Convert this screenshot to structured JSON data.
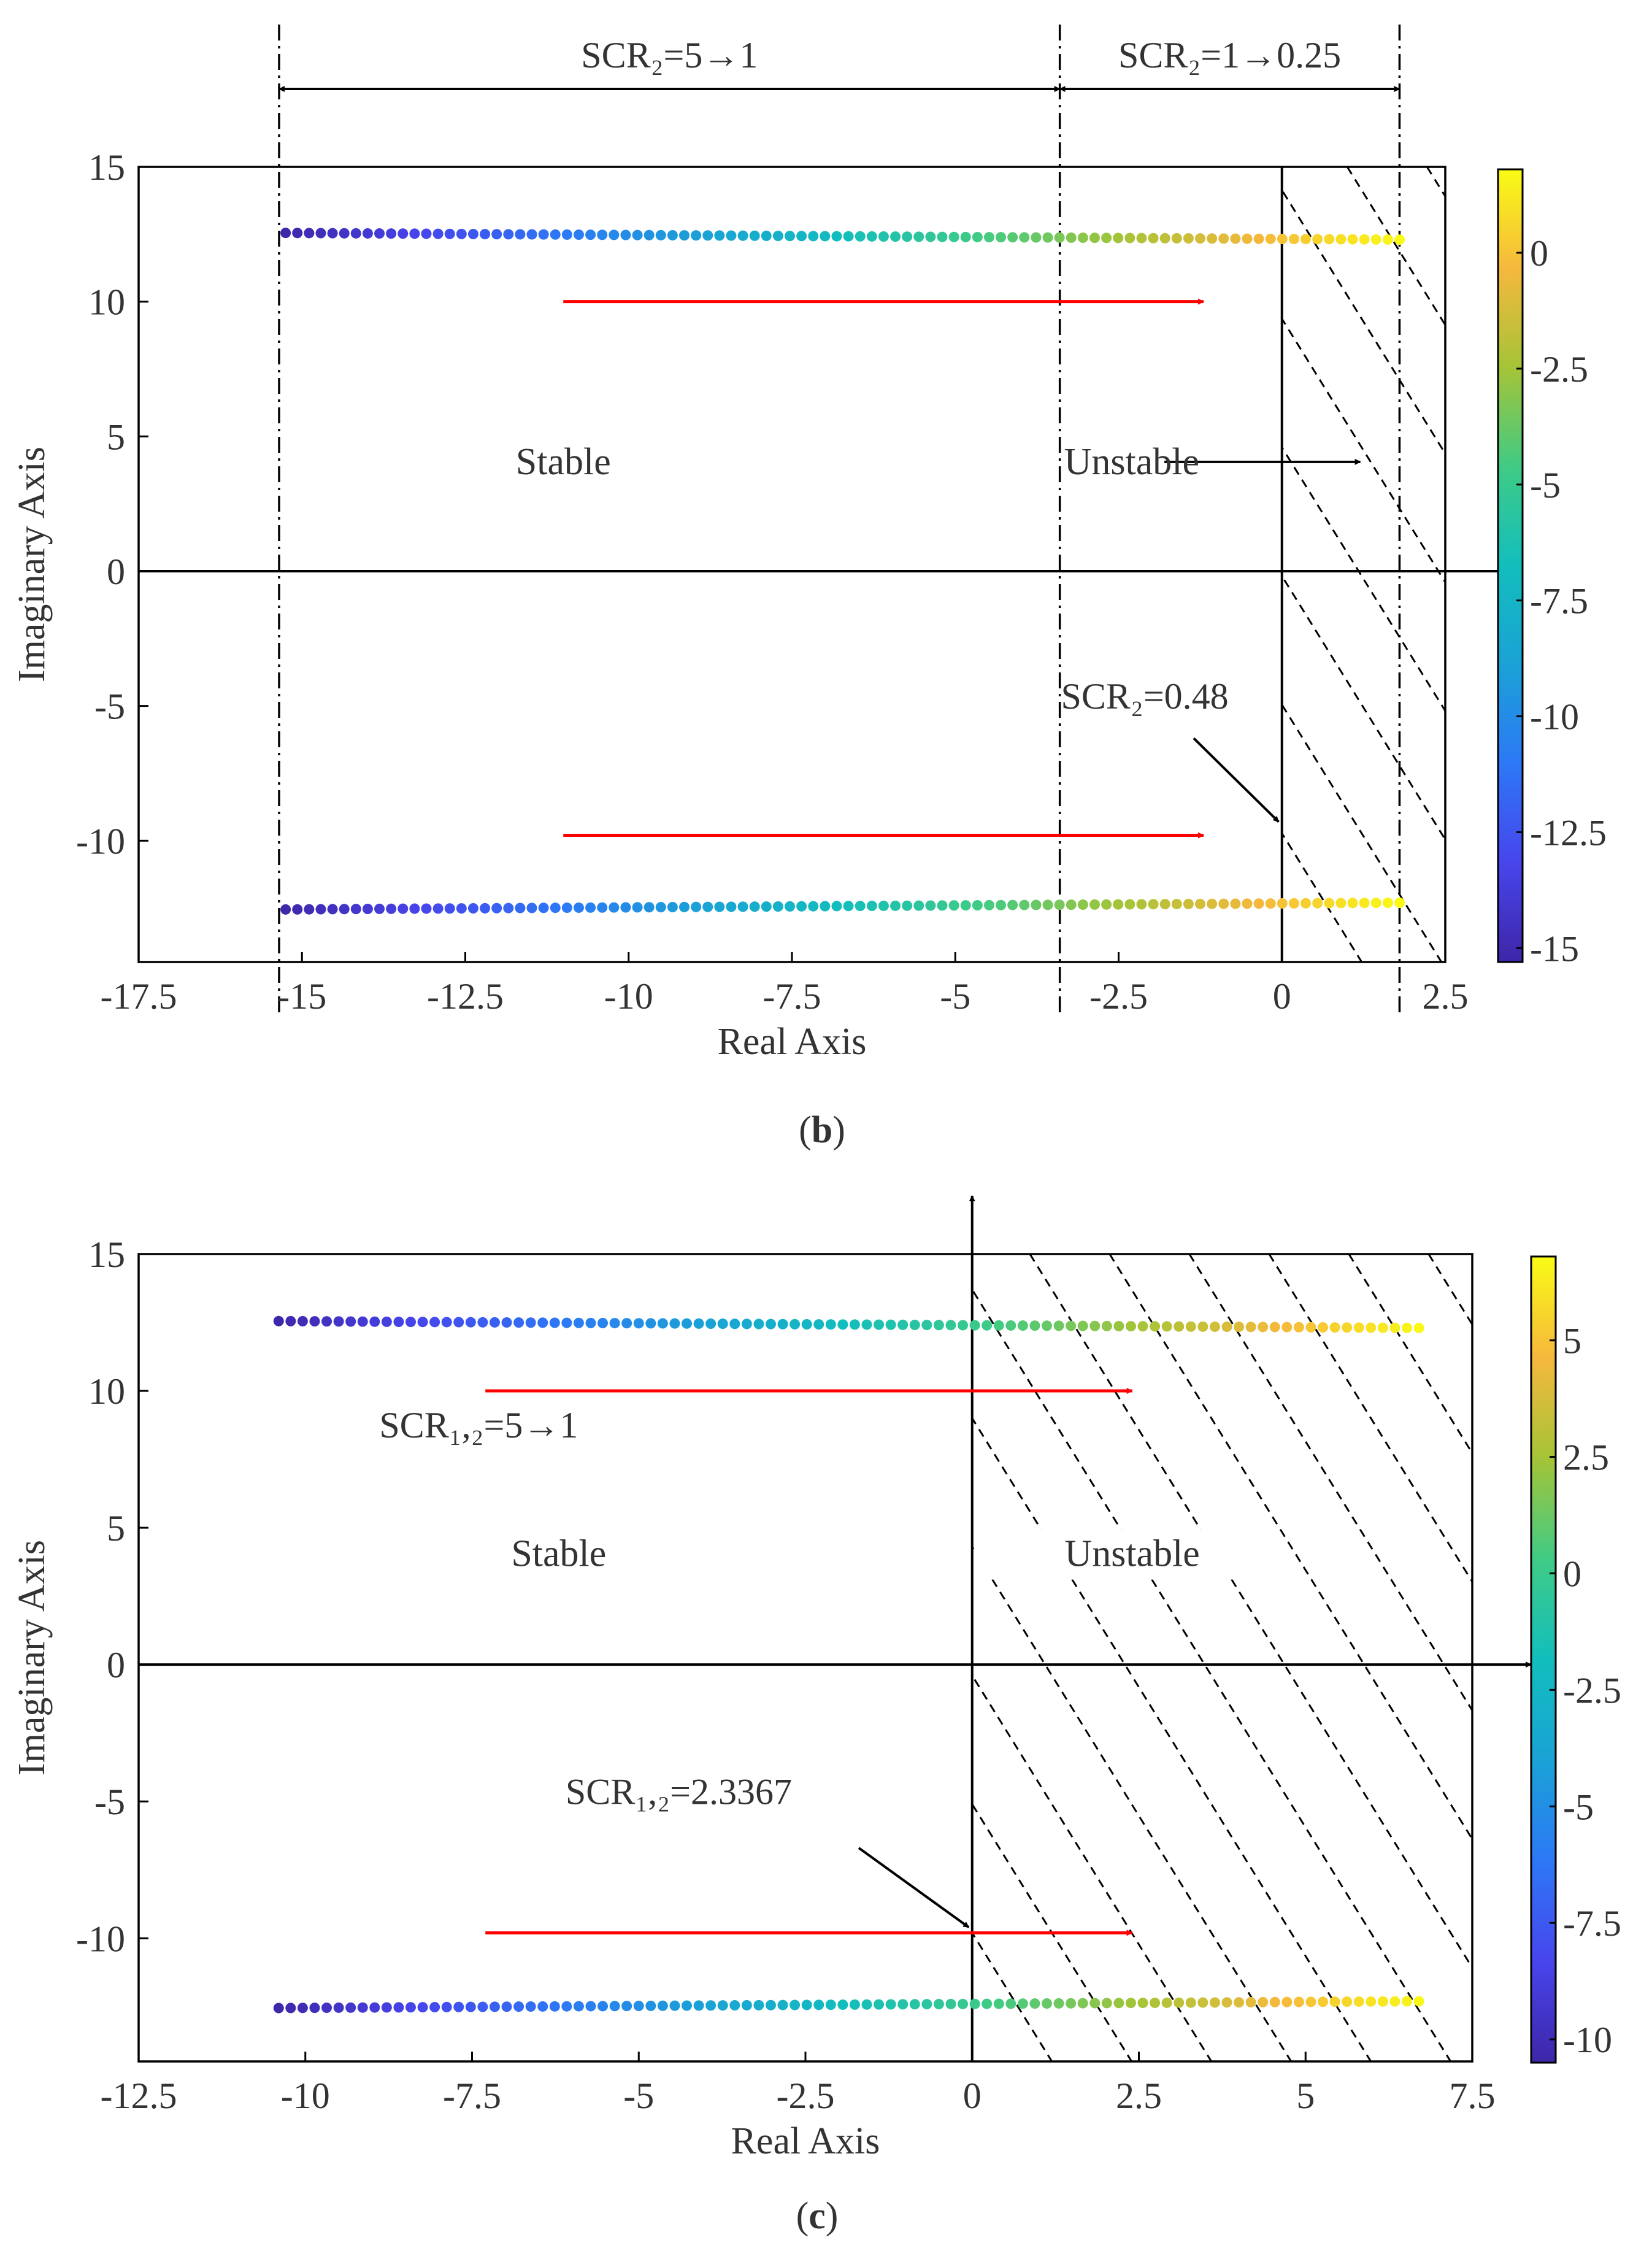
{
  "chart_data": [
    {
      "type": "scatter",
      "panel_id": "b",
      "caption_letter": "b",
      "xlabel": "Real Axis",
      "ylabel": "Imaginary Axis",
      "xlim": [
        -17.5,
        2.5
      ],
      "ylim": [
        -14.5,
        15
      ],
      "xticks": [
        -17.5,
        -15,
        -12.5,
        -10,
        -7.5,
        -5,
        -2.5,
        0,
        2.5
      ],
      "xtick_labels": [
        "-17.5",
        "-15",
        "-12.5",
        "-10",
        "-7.5",
        "-5",
        "-2.5",
        "0",
        "2.5"
      ],
      "yticks": [
        -10,
        -5,
        0,
        5,
        10,
        15
      ],
      "ytick_labels": [
        "-10",
        "-5",
        "0",
        "5",
        "10",
        "15"
      ],
      "colorbar": {
        "range": [
          -15.3,
          1.8
        ],
        "ticks": [
          -15,
          -12.5,
          -10,
          -7.5,
          -5,
          -2.5,
          0
        ],
        "tick_labels": [
          "-15",
          "-12.5",
          "-10",
          "-7.5",
          "-5",
          "-2.5",
          "0"
        ]
      },
      "series": [
        {
          "name": "upper eigenvalue branch",
          "x_start": -15.25,
          "x_end": 1.8,
          "y_start": 12.55,
          "y_end": 12.3,
          "points": 96
        },
        {
          "name": "lower eigenvalue branch",
          "x_start": -15.25,
          "x_end": 1.8,
          "y_start": -12.55,
          "y_end": -12.3,
          "points": 96
        }
      ],
      "unstable_region": {
        "x_from": 0,
        "x_to": 2.5
      },
      "dash_dot_lines_x": [
        -15.35,
        -3.4,
        1.8
      ],
      "arrows_red": [
        {
          "x_from": -11,
          "x_to": -1.2,
          "y": 10
        },
        {
          "x_from": -11,
          "x_to": -1.2,
          "y": -9.8
        }
      ],
      "labels": {
        "range1_text": "SCR₂=5→1",
        "range2_text": "SCR₂=1→0.25",
        "stable_text": "Stable",
        "unstable_text": "Unstable",
        "critical_text": "SCR₂=0.48"
      }
    },
    {
      "type": "scatter",
      "panel_id": "c",
      "caption_letter": "c",
      "xlabel": "Real Axis",
      "ylabel": "Imaginary Axis",
      "xlim": [
        -12.5,
        7.5
      ],
      "ylim": [
        -14.5,
        15
      ],
      "xticks": [
        -12.5,
        -10,
        -7.5,
        -5,
        -2.5,
        0,
        2.5,
        5,
        7.5
      ],
      "xtick_labels": [
        "-12.5",
        "-10",
        "-7.5",
        "-5",
        "-2.5",
        "0",
        "2.5",
        "5",
        "7.5"
      ],
      "yticks": [
        -10,
        -5,
        0,
        5,
        10,
        15
      ],
      "ytick_labels": [
        "-10",
        "-5",
        "0",
        "5",
        "10",
        "15"
      ],
      "colorbar": {
        "range": [
          -10.5,
          6.8
        ],
        "ticks": [
          -10,
          -7.5,
          -5,
          -2.5,
          0,
          2.5,
          5
        ],
        "tick_labels": [
          "-10",
          "-7.5",
          "-5",
          "-2.5",
          "0",
          "2.5",
          "5"
        ]
      },
      "series": [
        {
          "name": "upper eigenvalue branch",
          "x_start": -10.4,
          "x_end": 6.7,
          "y_start": 12.55,
          "y_end": 12.3,
          "points": 96
        },
        {
          "name": "lower eigenvalue branch",
          "x_start": -10.4,
          "x_end": 6.7,
          "y_start": -12.55,
          "y_end": -12.3,
          "points": 96
        }
      ],
      "unstable_region": {
        "x_from": 0,
        "x_to": 7.5
      },
      "arrows_red": [
        {
          "x_from": -7.3,
          "x_to": 2.4,
          "y": 10
        },
        {
          "x_from": -7.3,
          "x_to": 2.4,
          "y": -9.8
        }
      ],
      "labels": {
        "range_text": "SCR₁,₂=5→1",
        "stable_text": "Stable",
        "unstable_text": "Unstable",
        "critical_text": "SCR₁,₂=2.3367"
      }
    }
  ]
}
